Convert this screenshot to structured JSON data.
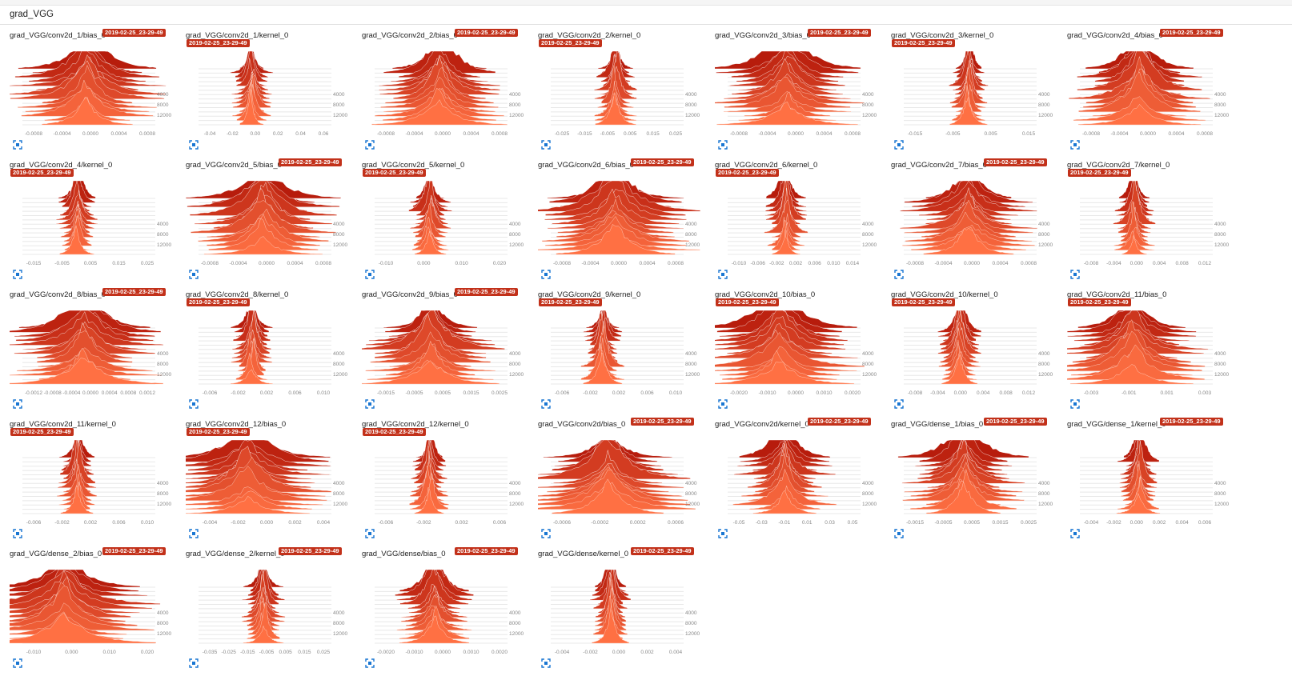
{
  "section": {
    "title": "grad_VGG"
  },
  "colors": {
    "dark": "#b71c0c",
    "light": "#ff7043",
    "badge": "#c2311a"
  },
  "icons": {
    "expand": "expand-icon"
  },
  "chart_data": [
    {
      "type": "histogram",
      "title": "grad_VGG/conv2d_1/bias_0",
      "run": "2019-02-25_23-29-49",
      "badge": "inline",
      "x_ticks": [
        "-0.0008",
        "-0.0004",
        "0.0000",
        "0.0004",
        "0.0008"
      ],
      "y_ticks": [
        "4000",
        "8000",
        "12000"
      ],
      "peak": 0.5,
      "width": 0.18
    },
    {
      "type": "histogram",
      "title": "grad_VGG/conv2d_1/kernel_0",
      "run": "2019-02-25_23-29-49",
      "badge": "below",
      "x_ticks": [
        "-0.04",
        "-0.02",
        "0.00",
        "0.02",
        "0.04",
        "0.06"
      ],
      "y_ticks": [
        "4000",
        "8000",
        "12000"
      ],
      "peak": 0.41,
      "width": 0.05
    },
    {
      "type": "histogram",
      "title": "grad_VGG/conv2d_2/bias_0",
      "run": "2019-02-25_23-29-49",
      "badge": "inline",
      "x_ticks": [
        "-0.0008",
        "-0.0004",
        "0.0000",
        "0.0004",
        "0.0008"
      ],
      "y_ticks": [
        "4000",
        "8000",
        "12000"
      ],
      "peak": 0.5,
      "width": 0.16
    },
    {
      "type": "histogram",
      "title": "grad_VGG/conv2d_2/kernel_0",
      "run": "2019-02-25_23-29-49",
      "badge": "below",
      "x_ticks": [
        "-0.025",
        "-0.015",
        "-0.005",
        "0.005",
        "0.015",
        "0.025"
      ],
      "y_ticks": [
        "4000",
        "8000",
        "12000"
      ],
      "peak": 0.5,
      "width": 0.05
    },
    {
      "type": "histogram",
      "title": "grad_VGG/conv2d_3/bias_0",
      "run": "2019-02-25_23-29-49",
      "badge": "inline",
      "x_ticks": [
        "-0.0008",
        "-0.0004",
        "0.0000",
        "0.0004",
        "0.0008"
      ],
      "y_ticks": [
        "4000",
        "8000",
        "12000"
      ],
      "peak": 0.46,
      "width": 0.18
    },
    {
      "type": "histogram",
      "title": "grad_VGG/conv2d_3/kernel_0",
      "run": "2019-02-25_23-29-49",
      "badge": "below",
      "x_ticks": [
        "-0.015",
        "-0.005",
        "0.005",
        "0.015"
      ],
      "y_ticks": [
        "4000",
        "8000",
        "12000"
      ],
      "peak": 0.5,
      "width": 0.05
    },
    {
      "type": "histogram",
      "title": "grad_VGG/conv2d_4/bias_0",
      "run": "2019-02-25_23-29-49",
      "badge": "inline",
      "x_ticks": [
        "-0.0008",
        "-0.0004",
        "0.0000",
        "0.0004",
        "0.0008"
      ],
      "y_ticks": [
        "4000",
        "8000",
        "12000"
      ],
      "peak": 0.46,
      "width": 0.17
    },
    {
      "type": "histogram",
      "title": "grad_VGG/conv2d_4/kernel_0",
      "run": "2019-02-25_23-29-49",
      "badge": "below",
      "x_ticks": [
        "-0.015",
        "-0.005",
        "0.005",
        "0.015",
        "0.025"
      ],
      "y_ticks": [
        "4000",
        "8000",
        "12000"
      ],
      "peak": 0.42,
      "width": 0.05
    },
    {
      "type": "histogram",
      "title": "grad_VGG/conv2d_5/bias_0",
      "run": "2019-02-25_23-29-49",
      "badge": "inline",
      "x_ticks": [
        "-0.0008",
        "-0.0004",
        "0.0000",
        "0.0004",
        "0.0008"
      ],
      "y_ticks": [
        "4000",
        "8000",
        "12000"
      ],
      "peak": 0.5,
      "width": 0.18
    },
    {
      "type": "histogram",
      "title": "grad_VGG/conv2d_5/kernel_0",
      "run": "2019-02-25_23-29-49",
      "badge": "below",
      "x_ticks": [
        "-0.010",
        "0.000",
        "0.010",
        "0.020"
      ],
      "y_ticks": [
        "4000",
        "8000",
        "12000"
      ],
      "peak": 0.43,
      "width": 0.05
    },
    {
      "type": "histogram",
      "title": "grad_VGG/conv2d_6/bias_0",
      "run": "2019-02-25_23-29-49",
      "badge": "inline",
      "x_ticks": [
        "-0.0008",
        "-0.0004",
        "0.0000",
        "0.0004",
        "0.0008"
      ],
      "y_ticks": [
        "4000",
        "8000",
        "12000"
      ],
      "peak": 0.5,
      "width": 0.2
    },
    {
      "type": "histogram",
      "title": "grad_VGG/conv2d_6/kernel_0",
      "run": "2019-02-25_23-29-49",
      "badge": "below",
      "x_ticks": [
        "-0.010",
        "-0.006",
        "-0.002",
        "0.002",
        "0.006",
        "0.010",
        "0.014"
      ],
      "y_ticks": [
        "4000",
        "8000",
        "12000"
      ],
      "peak": 0.45,
      "width": 0.05
    },
    {
      "type": "histogram",
      "title": "grad_VGG/conv2d_7/bias_0",
      "run": "2019-02-25_23-29-49",
      "badge": "inline",
      "x_ticks": [
        "-0.0008",
        "-0.0004",
        "0.0000",
        "0.0004",
        "0.0008"
      ],
      "y_ticks": [
        "4000",
        "8000",
        "12000"
      ],
      "peak": 0.5,
      "width": 0.17
    },
    {
      "type": "histogram",
      "title": "grad_VGG/conv2d_7/kernel_0",
      "run": "2019-02-25_23-29-49",
      "badge": "below",
      "x_ticks": [
        "-0.008",
        "-0.004",
        "0.000",
        "0.004",
        "0.008",
        "0.012"
      ],
      "y_ticks": [
        "4000",
        "8000",
        "12000"
      ],
      "peak": 0.42,
      "width": 0.05
    },
    {
      "type": "histogram",
      "title": "grad_VGG/conv2d_8/bias_0",
      "run": "2019-02-25_23-29-49",
      "badge": "inline",
      "x_ticks": [
        "-0.0012",
        "-0.0008",
        "-0.0004",
        "0.0000",
        "0.0004",
        "0.0008",
        "0.0012"
      ],
      "y_ticks": [
        "4000",
        "8000",
        "12000"
      ],
      "peak": 0.48,
      "width": 0.18
    },
    {
      "type": "histogram",
      "title": "grad_VGG/conv2d_8/kernel_0",
      "run": "2019-02-25_23-29-49",
      "badge": "below",
      "x_ticks": [
        "-0.006",
        "-0.002",
        "0.002",
        "0.006",
        "0.010"
      ],
      "y_ticks": [
        "4000",
        "8000",
        "12000"
      ],
      "peak": 0.41,
      "width": 0.05
    },
    {
      "type": "histogram",
      "title": "grad_VGG/conv2d_9/bias_0",
      "run": "2019-02-25_23-29-49",
      "badge": "inline",
      "x_ticks": [
        "-0.0015",
        "-0.0005",
        "0.0005",
        "0.0015",
        "0.0025"
      ],
      "y_ticks": [
        "4000",
        "8000",
        "12000"
      ],
      "peak": 0.43,
      "width": 0.17
    },
    {
      "type": "histogram",
      "title": "grad_VGG/conv2d_9/kernel_0",
      "run": "2019-02-25_23-29-49",
      "badge": "below",
      "x_ticks": [
        "-0.006",
        "-0.002",
        "0.002",
        "0.006",
        "0.010"
      ],
      "y_ticks": [
        "4000",
        "8000",
        "12000"
      ],
      "peak": 0.4,
      "width": 0.05
    },
    {
      "type": "histogram",
      "title": "grad_VGG/conv2d_10/bias_0",
      "run": "2019-02-25_23-29-49",
      "badge": "below",
      "x_ticks": [
        "-0.0020",
        "-0.0010",
        "0.0000",
        "0.0010",
        "0.0020"
      ],
      "y_ticks": [
        "4000",
        "8000",
        "12000"
      ],
      "peak": 0.4,
      "width": 0.2
    },
    {
      "type": "histogram",
      "title": "grad_VGG/conv2d_10/kernel_0",
      "run": "2019-02-25_23-29-49",
      "badge": "below",
      "x_ticks": [
        "-0.008",
        "-0.004",
        "0.000",
        "0.004",
        "0.008",
        "0.012"
      ],
      "y_ticks": [
        "4000",
        "8000",
        "12000"
      ],
      "peak": 0.43,
      "width": 0.05
    },
    {
      "type": "histogram",
      "title": "grad_VGG/conv2d_11/bias_0",
      "run": "2019-02-25_23-29-49",
      "badge": "below",
      "x_ticks": [
        "-0.003",
        "-0.001",
        "0.001",
        "0.003"
      ],
      "y_ticks": [
        "4000",
        "8000",
        "12000"
      ],
      "peak": 0.4,
      "width": 0.18
    },
    {
      "type": "histogram",
      "title": "grad_VGG/conv2d_11/kernel_0",
      "run": "2019-02-25_23-29-49",
      "badge": "below",
      "x_ticks": [
        "-0.006",
        "-0.002",
        "0.002",
        "0.006",
        "0.010"
      ],
      "y_ticks": [
        "4000",
        "8000",
        "12000"
      ],
      "peak": 0.42,
      "width": 0.05
    },
    {
      "type": "histogram",
      "title": "grad_VGG/conv2d_12/bias_0",
      "run": "2019-02-25_23-29-49",
      "badge": "below",
      "x_ticks": [
        "-0.004",
        "-0.002",
        "0.000",
        "0.002",
        "0.004"
      ],
      "y_ticks": [
        "4000",
        "8000",
        "12000"
      ],
      "peak": 0.38,
      "width": 0.2
    },
    {
      "type": "histogram",
      "title": "grad_VGG/conv2d_12/kernel_0",
      "run": "2019-02-25_23-29-49",
      "badge": "below",
      "x_ticks": [
        "-0.006",
        "-0.002",
        "0.002",
        "0.006"
      ],
      "y_ticks": [
        "4000",
        "8000",
        "12000"
      ],
      "peak": 0.42,
      "width": 0.05
    },
    {
      "type": "histogram",
      "title": "grad_VGG/conv2d/bias_0",
      "run": "2019-02-25_23-29-49",
      "badge": "inline",
      "x_ticks": [
        "-0.0006",
        "-0.0002",
        "0.0002",
        "0.0006"
      ],
      "y_ticks": [
        "4000",
        "8000",
        "12000"
      ],
      "peak": 0.44,
      "width": 0.2
    },
    {
      "type": "histogram",
      "title": "grad_VGG/conv2d/kernel_0",
      "run": "2019-02-25_23-29-49",
      "badge": "inline",
      "x_ticks": [
        "-0.05",
        "-0.03",
        "-0.01",
        "0.01",
        "0.03",
        "0.05"
      ],
      "y_ticks": [
        "4000",
        "8000",
        "12000"
      ],
      "peak": 0.44,
      "width": 0.12
    },
    {
      "type": "histogram",
      "title": "grad_VGG/dense_1/bias_0",
      "run": "2019-02-25_23-29-49",
      "badge": "inline",
      "x_ticks": [
        "-0.0015",
        "-0.0005",
        "0.0005",
        "0.0015",
        "0.0025"
      ],
      "y_ticks": [
        "4000",
        "8000",
        "12000"
      ],
      "peak": 0.46,
      "width": 0.15
    },
    {
      "type": "histogram",
      "title": "grad_VGG/dense_1/kernel_0",
      "run": "2019-02-25_23-29-49",
      "badge": "inline",
      "x_ticks": [
        "-0.004",
        "-0.002",
        "0.000",
        "0.002",
        "0.004",
        "0.006"
      ],
      "y_ticks": [
        "4000",
        "8000",
        "12000"
      ],
      "peak": 0.45,
      "width": 0.05
    },
    {
      "type": "histogram",
      "title": "grad_VGG/dense_2/bias_0",
      "run": "2019-02-25_23-29-49",
      "badge": "inline",
      "x_ticks": [
        "-0.010",
        "0.000",
        "0.010",
        "0.020"
      ],
      "y_ticks": [
        "4000",
        "8000",
        "12000"
      ],
      "peak": 0.32,
      "width": 0.22
    },
    {
      "type": "histogram",
      "title": "grad_VGG/dense_2/kernel_0",
      "run": "2019-02-25_23-29-49",
      "badge": "inline",
      "x_ticks": [
        "-0.035",
        "-0.025",
        "-0.015",
        "-0.005",
        "0.005",
        "0.015",
        "0.025"
      ],
      "y_ticks": [
        "4000",
        "8000",
        "12000"
      ],
      "peak": 0.5,
      "width": 0.05
    },
    {
      "type": "histogram",
      "title": "grad_VGG/dense/bias_0",
      "run": "2019-02-25_23-29-49",
      "badge": "inline",
      "x_ticks": [
        "-0.0020",
        "-0.0010",
        "0.0000",
        "0.0010",
        "0.0020"
      ],
      "y_ticks": [
        "4000",
        "8000",
        "12000"
      ],
      "peak": 0.46,
      "width": 0.09
    },
    {
      "type": "histogram",
      "title": "grad_VGG/dense/kernel_0",
      "run": "2019-02-25_23-29-49",
      "badge": "inline",
      "x_ticks": [
        "-0.004",
        "-0.002",
        "0.000",
        "0.002",
        "0.004"
      ],
      "y_ticks": [
        "4000",
        "8000",
        "12000"
      ],
      "peak": 0.46,
      "width": 0.05
    }
  ]
}
